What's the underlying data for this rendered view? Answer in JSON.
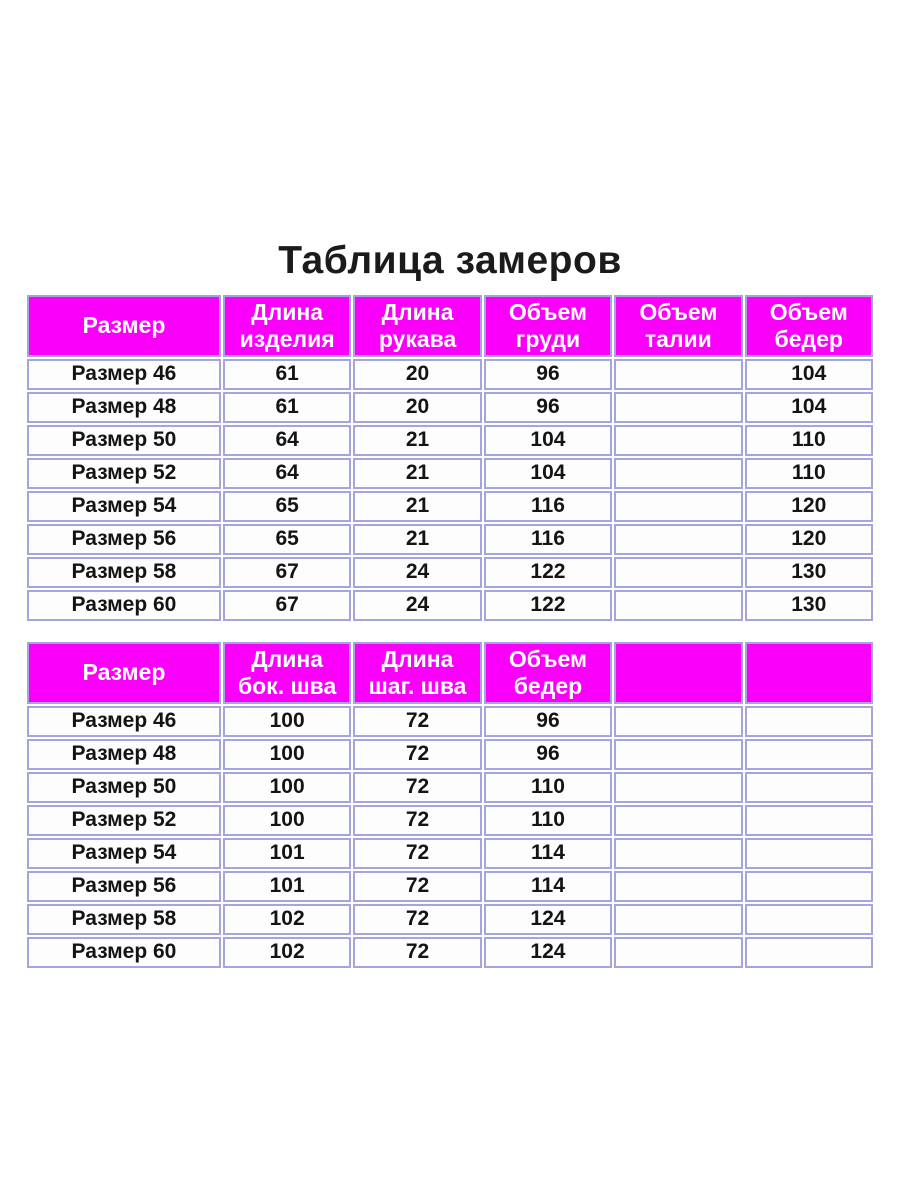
{
  "title": "Таблица замеров",
  "colors": {
    "header_bg": "#fa00fa",
    "header_text": "#ffffff",
    "border": "#a5a5dd",
    "cell_bg": "#fdfdfd",
    "title_text": "#1b1b1b"
  },
  "chart_data": [
    {
      "type": "table",
      "title": "Таблица замеров",
      "columns": [
        "Размер",
        "Длина изделия",
        "Длина рукава",
        "Объем груди",
        "Объем талии",
        "Объем бедер"
      ],
      "rows": [
        [
          "Размер 46",
          "61",
          "20",
          "96",
          "",
          "104"
        ],
        [
          "Размер 48",
          "61",
          "20",
          "96",
          "",
          "104"
        ],
        [
          "Размер 50",
          "64",
          "21",
          "104",
          "",
          "110"
        ],
        [
          "Размер 52",
          "64",
          "21",
          "104",
          "",
          "110"
        ],
        [
          "Размер 54",
          "65",
          "21",
          "116",
          "",
          "120"
        ],
        [
          "Размер 56",
          "65",
          "21",
          "116",
          "",
          "120"
        ],
        [
          "Размер 58",
          "67",
          "24",
          "122",
          "",
          "130"
        ],
        [
          "Размер 60",
          "67",
          "24",
          "122",
          "",
          "130"
        ]
      ]
    },
    {
      "type": "table",
      "title": "",
      "columns": [
        "Размер",
        "Длина бок. шва",
        "Длина шаг. шва",
        "Объем бедер",
        "",
        ""
      ],
      "rows": [
        [
          "Размер 46",
          "100",
          "72",
          "96",
          "",
          ""
        ],
        [
          "Размер 48",
          "100",
          "72",
          "96",
          "",
          ""
        ],
        [
          "Размер 50",
          "100",
          "72",
          "110",
          "",
          ""
        ],
        [
          "Размер 52",
          "100",
          "72",
          "110",
          "",
          ""
        ],
        [
          "Размер 54",
          "101",
          "72",
          "114",
          "",
          ""
        ],
        [
          "Размер 56",
          "101",
          "72",
          "114",
          "",
          ""
        ],
        [
          "Размер 58",
          "102",
          "72",
          "124",
          "",
          ""
        ],
        [
          "Размер 60",
          "102",
          "72",
          "124",
          "",
          ""
        ]
      ]
    }
  ]
}
